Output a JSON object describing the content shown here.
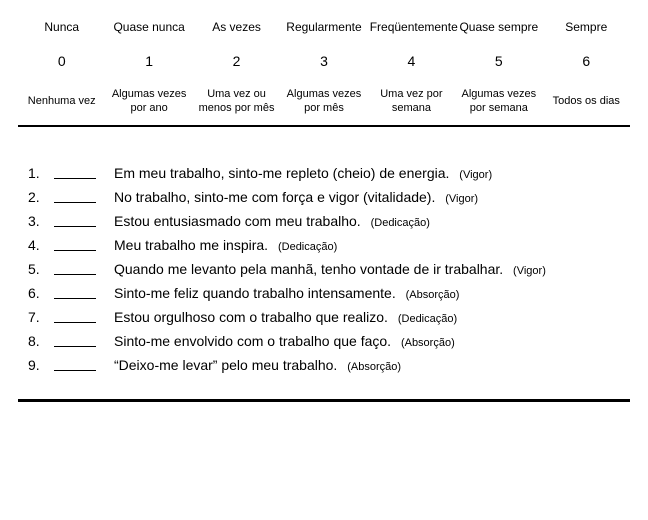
{
  "scale": {
    "headers": [
      "Nunca",
      "Quase nunca",
      "As vezes",
      "Regularmente",
      "Freqüentemente",
      "Quase sempre",
      "Sempre"
    ],
    "numbers": [
      "0",
      "1",
      "2",
      "3",
      "4",
      "5",
      "6"
    ],
    "descs": [
      "Nenhuma vez",
      "Algumas vezes por ano",
      "Uma vez ou menos por mês",
      "Algumas vezes por mês",
      "Uma vez por semana",
      "Algumas vezes por semana",
      "Todos os dias"
    ]
  },
  "questions": [
    {
      "n": "1.",
      "text": "Em meu trabalho, sinto-me repleto (cheio) de energia.",
      "dim": "(Vigor)"
    },
    {
      "n": "2.",
      "text": "No trabalho, sinto-me com força e vigor (vitalidade).",
      "dim": "(Vigor)"
    },
    {
      "n": "3.",
      "text": "Estou entusiasmado com meu trabalho.",
      "dim": "(Dedicação)"
    },
    {
      "n": "4.",
      "text": "Meu trabalho me inspira.",
      "dim": "(Dedicação)"
    },
    {
      "n": "5.",
      "text": "Quando me levanto pela manhã, tenho vontade de ir trabalhar.",
      "dim": "(Vigor)"
    },
    {
      "n": "6.",
      "text": "Sinto-me feliz quando trabalho intensamente.",
      "dim": "(Absorção)"
    },
    {
      "n": "7.",
      "text": "Estou orgulhoso com o trabalho que realizo.",
      "dim": "(Dedicação)"
    },
    {
      "n": "8.",
      "text": "Sinto-me envolvido com o trabalho que faço.",
      "dim": "(Absorção)"
    },
    {
      "n": "9.",
      "text": "“Deixo-me levar” pelo meu trabalho.",
      "dim": "(Absorção)"
    }
  ]
}
